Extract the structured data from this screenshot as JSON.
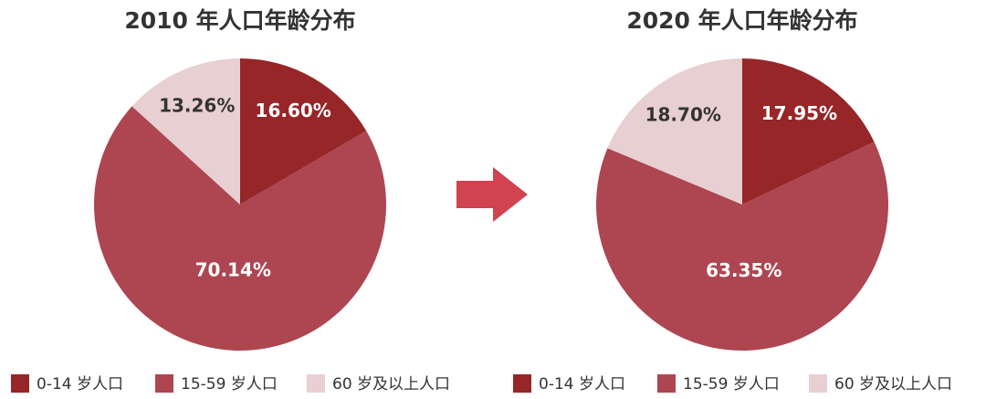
{
  "chart_data": [
    {
      "type": "pie",
      "title": "2010 年人口年龄分布",
      "categories": [
        "0-14 岁人口",
        "15-59 岁人口",
        "60 岁及以上人口"
      ],
      "values": [
        16.6,
        70.14,
        13.26
      ],
      "value_labels": [
        "16.60%",
        "70.14%",
        "13.26%"
      ],
      "colors": [
        "#962628",
        "#ad4650",
        "#e8cfd1"
      ]
    },
    {
      "type": "pie",
      "title": "2020 年人口年龄分布",
      "categories": [
        "0-14 岁人口",
        "15-59 岁人口",
        "60 岁及以上人口"
      ],
      "values": [
        17.95,
        63.35,
        18.7
      ],
      "value_labels": [
        "17.95%",
        "63.35%",
        "18.70%"
      ],
      "colors": [
        "#962628",
        "#ad4650",
        "#e8cfd1"
      ]
    }
  ]
}
